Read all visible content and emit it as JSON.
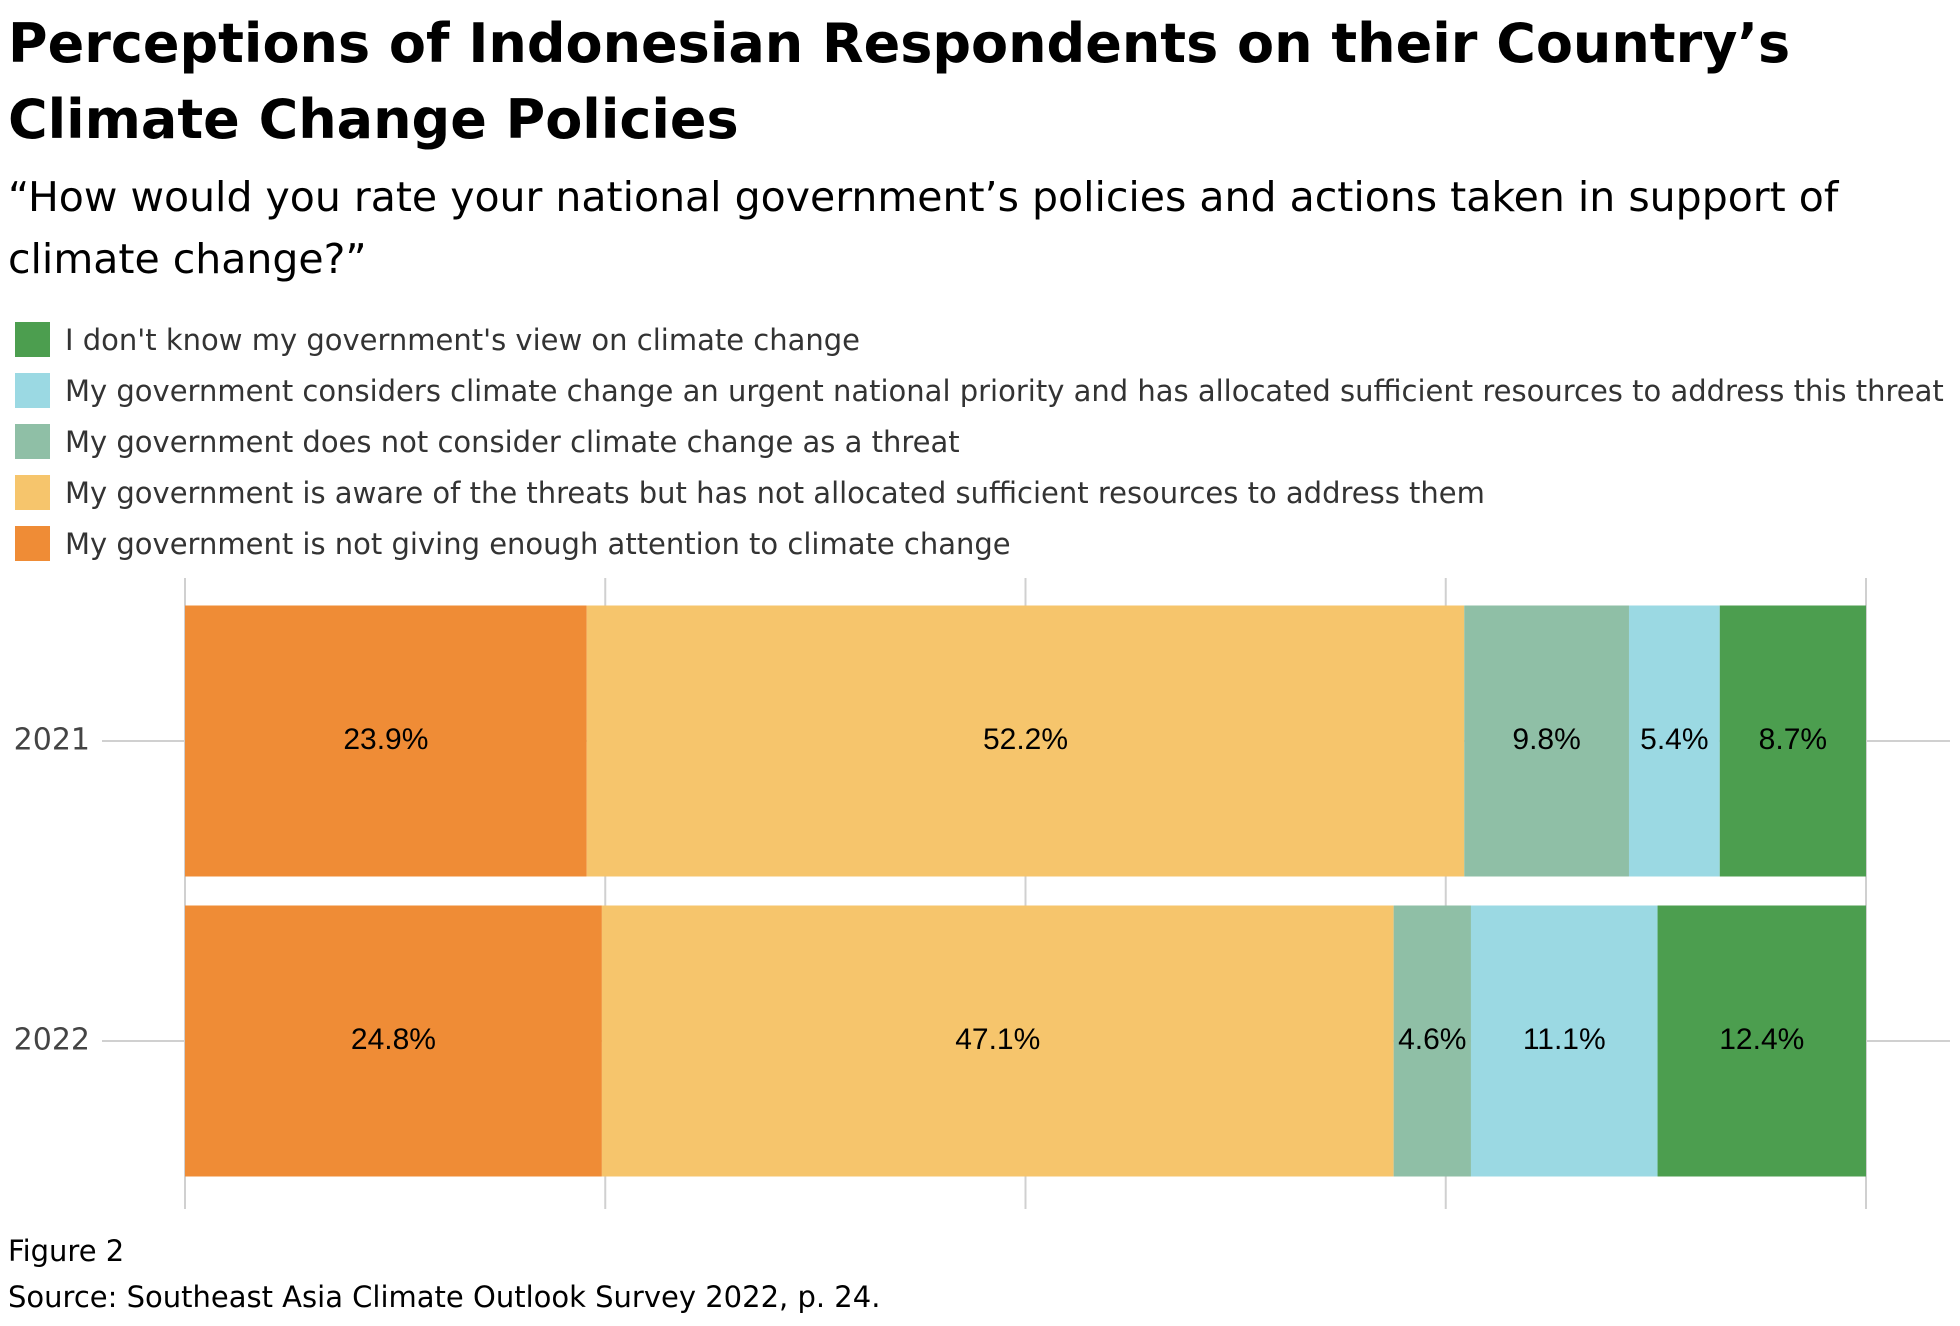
{
  "chart_data": {
    "type": "stacked-bar-horizontal",
    "title": "Perceptions of Indonesian Respondents on their Country’s Climate Change Policies",
    "subtitle": "“How would you rate your national government’s policies and actions taken in support of climate change?”",
    "categories": [
      "2021",
      "2022"
    ],
    "series": [
      {
        "name": "My government is not giving enough attention to climate change",
        "color": "#ef8c36",
        "values": [
          23.9,
          24.8
        ],
        "value_labels": [
          "23.9%",
          "24.8%"
        ]
      },
      {
        "name": "My government is aware of the threats but has not allocated sufficient resources to address them",
        "color": "#f6c56c",
        "values": [
          52.2,
          47.1
        ],
        "value_labels": [
          "52.2%",
          "47.1%"
        ]
      },
      {
        "name": "My government does not consider climate change as a threat",
        "color": "#8fbfa6",
        "values": [
          9.8,
          4.6
        ],
        "value_labels": [
          "9.8%",
          "4.6%"
        ]
      },
      {
        "name": "My government considers climate change an urgent national priority and has allocated sufficient resources to address this threat",
        "color": "#9bd9e3",
        "values": [
          5.4,
          11.1
        ],
        "value_labels": [
          "5.4%",
          "11.1%"
        ]
      },
      {
        "name": "I don't know my government's view on climate change",
        "color": "#4c9e4f",
        "values": [
          8.7,
          12.4
        ],
        "value_labels": [
          "8.7%",
          "12.4%"
        ]
      }
    ],
    "xlim": [
      0,
      100
    ],
    "xticks": [
      0,
      25,
      50,
      75,
      100
    ],
    "grid": true,
    "figure_label": "Figure 2",
    "source": "Source: Southeast Asia Climate Outlook Survey 2022, p. 24."
  }
}
